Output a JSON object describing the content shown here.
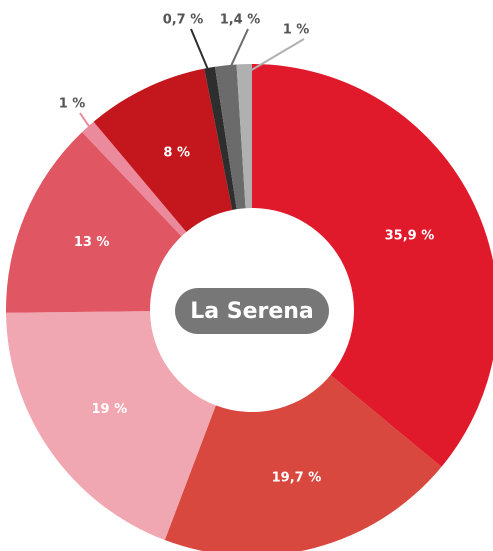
{
  "chart_data": {
    "type": "donut",
    "title": "La Serena",
    "values": [
      35.9,
      19.7,
      19,
      13,
      1,
      8,
      0.7,
      1.4,
      1
    ],
    "value_labels": [
      "35,9 %",
      "19,7 %",
      "19 %",
      "13 %",
      "1 %",
      "8 %",
      "0,7 %",
      "1,4 %",
      "1 %"
    ],
    "colors": [
      "#e01a2b",
      "#d9483f",
      "#f1a7b1",
      "#e05662",
      "#ea8a9c",
      "#c4161d",
      "#2e2e2e",
      "#6b6b6b",
      "#b0b0b0"
    ]
  }
}
